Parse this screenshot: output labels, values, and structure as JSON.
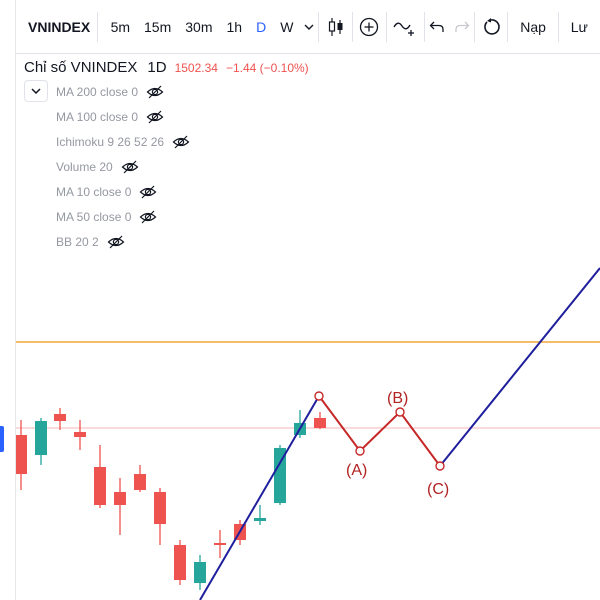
{
  "toolbar": {
    "symbol": "VNINDEX",
    "timeframes": [
      "5m",
      "15m",
      "30m",
      "1h",
      "D",
      "W"
    ],
    "active_timeframe": "D",
    "nap_label": "Nạp",
    "luu_label": "Lư"
  },
  "legend": {
    "name": "Chỉ số VNINDEX",
    "timeframe": "1D",
    "price": "1502.34",
    "change": "−1.44 (−0.10%)",
    "indicators": [
      "MA 200 close 0",
      "MA 100 close 0",
      "Ichimoku 9 26 52 26",
      "Volume 20",
      "MA 10 close 0",
      "MA 50 close 0",
      "BB 20 2"
    ]
  },
  "chart_data": {
    "type": "candlestick",
    "candles_direction": [
      "down",
      "up",
      "down",
      "down",
      "down",
      "down",
      "down",
      "down",
      "down",
      "up",
      "down",
      "down",
      "up",
      "up",
      "up",
      "down"
    ],
    "wave_labels": [
      "(A)",
      "(B)",
      "(C)"
    ],
    "colors": {
      "up": "#26a69a",
      "down": "#ef5350",
      "trendline": "#1f1f9e",
      "abc_path": "#c62828",
      "horizontal_line": "#f0a63a",
      "price_line": "#f4b4b4"
    }
  }
}
